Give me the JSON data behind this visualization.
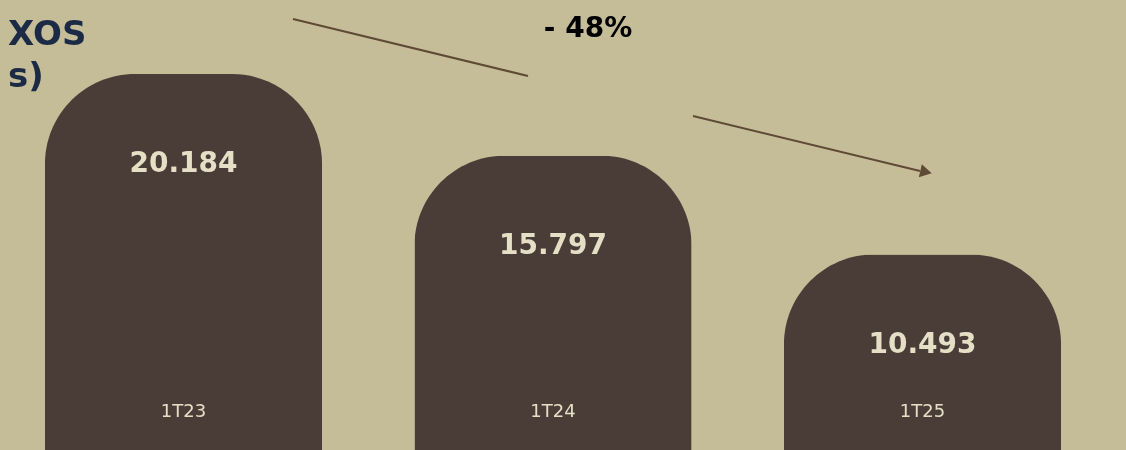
{
  "chart_data": {
    "type": "bar",
    "title": "XOS\ns)",
    "categories": [
      "1T23",
      "1T24",
      "1T25"
    ],
    "values": [
      20184,
      15797,
      10493
    ],
    "value_labels": [
      "20.184",
      "15.797",
      "10.493"
    ],
    "color": "#4a3d38",
    "annotations": [
      "- 48%"
    ]
  }
}
